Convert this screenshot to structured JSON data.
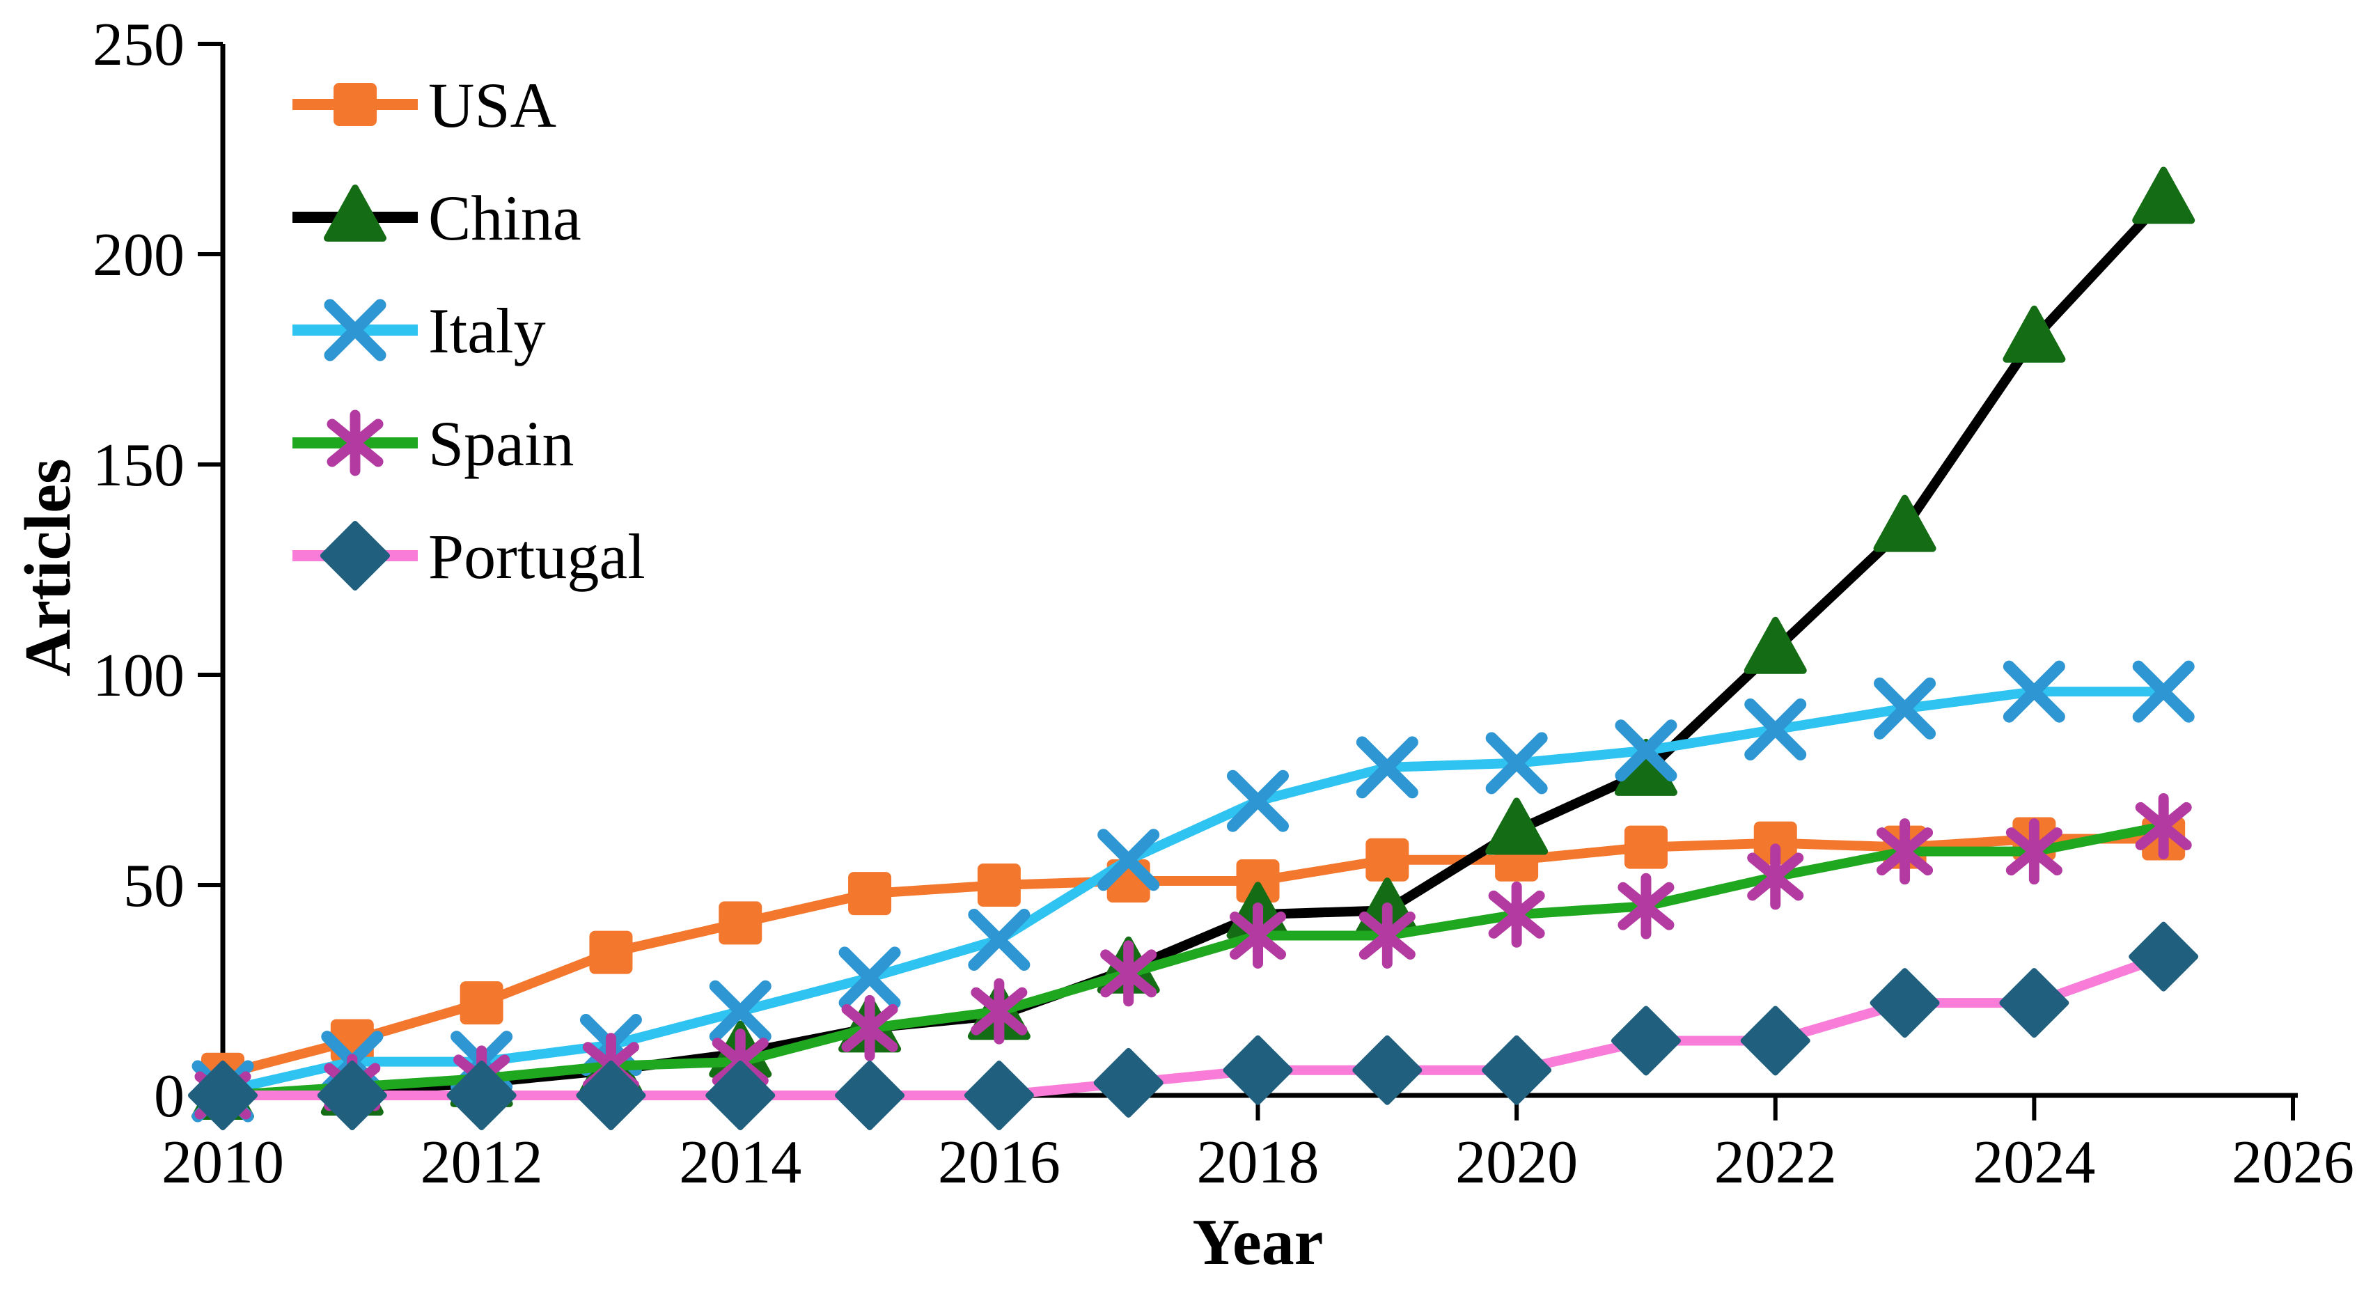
{
  "chart_data": {
    "type": "line",
    "title": "",
    "xlabel": "Year",
    "ylabel": "Articles",
    "xlim": [
      2010,
      2026
    ],
    "ylim": [
      0,
      250
    ],
    "grid": false,
    "legend_position": "top-left-inside",
    "x": [
      2010,
      2011,
      2012,
      2013,
      2014,
      2015,
      2016,
      2017,
      2018,
      2019,
      2020,
      2021,
      2022,
      2023,
      2024,
      2025
    ],
    "x_ticks": [
      "2010",
      "2012",
      "2014",
      "2016",
      "2018",
      "2020",
      "2022",
      "2024",
      "2026"
    ],
    "y_ticks": [
      "0",
      "50",
      "100",
      "150",
      "200",
      "250"
    ],
    "series": [
      {
        "name": "USA",
        "marker": "square",
        "line_color": "#F4772E",
        "marker_color": "#F4772E",
        "values": [
          5,
          13,
          22,
          34,
          41,
          48,
          50,
          51,
          51,
          56,
          56,
          59,
          60,
          59,
          61,
          61
        ]
      },
      {
        "name": "China",
        "marker": "triangle",
        "line_color": "#000000",
        "marker_color": "#146C14",
        "values": [
          0,
          1,
          3,
          6,
          10,
          16,
          19,
          30,
          43,
          44,
          63,
          77,
          106,
          135,
          180,
          213
        ]
      },
      {
        "name": "Italy",
        "marker": "x",
        "line_color": "#2EC3F0",
        "marker_color": "#2E96D2",
        "values": [
          1,
          8,
          8,
          12,
          20,
          28,
          37,
          56,
          70,
          78,
          79,
          82,
          87,
          92,
          96,
          96
        ]
      },
      {
        "name": "Spain",
        "marker": "asterisk",
        "line_color": "#1FA71F",
        "marker_color": "#B23AA0",
        "values": [
          0,
          2,
          4,
          7,
          8,
          16,
          20,
          29,
          38,
          38,
          43,
          45,
          52,
          58,
          58,
          64
        ]
      },
      {
        "name": "Portugal",
        "marker": "diamond",
        "line_color": "#F97CD9",
        "marker_color": "#20607E",
        "values": [
          0,
          0,
          0,
          0,
          0,
          0,
          0,
          3,
          6,
          6,
          6,
          13,
          13,
          22,
          22,
          33
        ]
      }
    ]
  }
}
